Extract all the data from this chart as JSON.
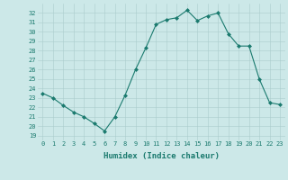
{
  "x": [
    0,
    1,
    2,
    3,
    4,
    5,
    6,
    7,
    8,
    9,
    10,
    11,
    12,
    13,
    14,
    15,
    16,
    17,
    18,
    19,
    20,
    21,
    22,
    23
  ],
  "y": [
    23.5,
    23.0,
    22.2,
    21.5,
    21.0,
    20.3,
    19.5,
    21.0,
    23.3,
    26.0,
    28.3,
    30.8,
    31.3,
    31.5,
    32.3,
    31.2,
    31.7,
    32.0,
    29.8,
    28.5,
    28.5,
    25.0,
    22.5,
    22.3
  ],
  "xlim": [
    -0.5,
    23.5
  ],
  "ylim": [
    18.5,
    33.0
  ],
  "yticks": [
    19,
    20,
    21,
    22,
    23,
    24,
    25,
    26,
    27,
    28,
    29,
    30,
    31,
    32
  ],
  "xticks": [
    0,
    1,
    2,
    3,
    4,
    5,
    6,
    7,
    8,
    9,
    10,
    11,
    12,
    13,
    14,
    15,
    16,
    17,
    18,
    19,
    20,
    21,
    22,
    23
  ],
  "xlabel": "Humidex (Indice chaleur)",
  "line_color": "#1a7a6e",
  "marker": "D",
  "marker_size": 2.0,
  "bg_color": "#cce8e8",
  "grid_color": "#aacccc",
  "tick_color": "#1a7a6e",
  "tick_fontsize": 5.0,
  "xlabel_fontsize": 6.5
}
